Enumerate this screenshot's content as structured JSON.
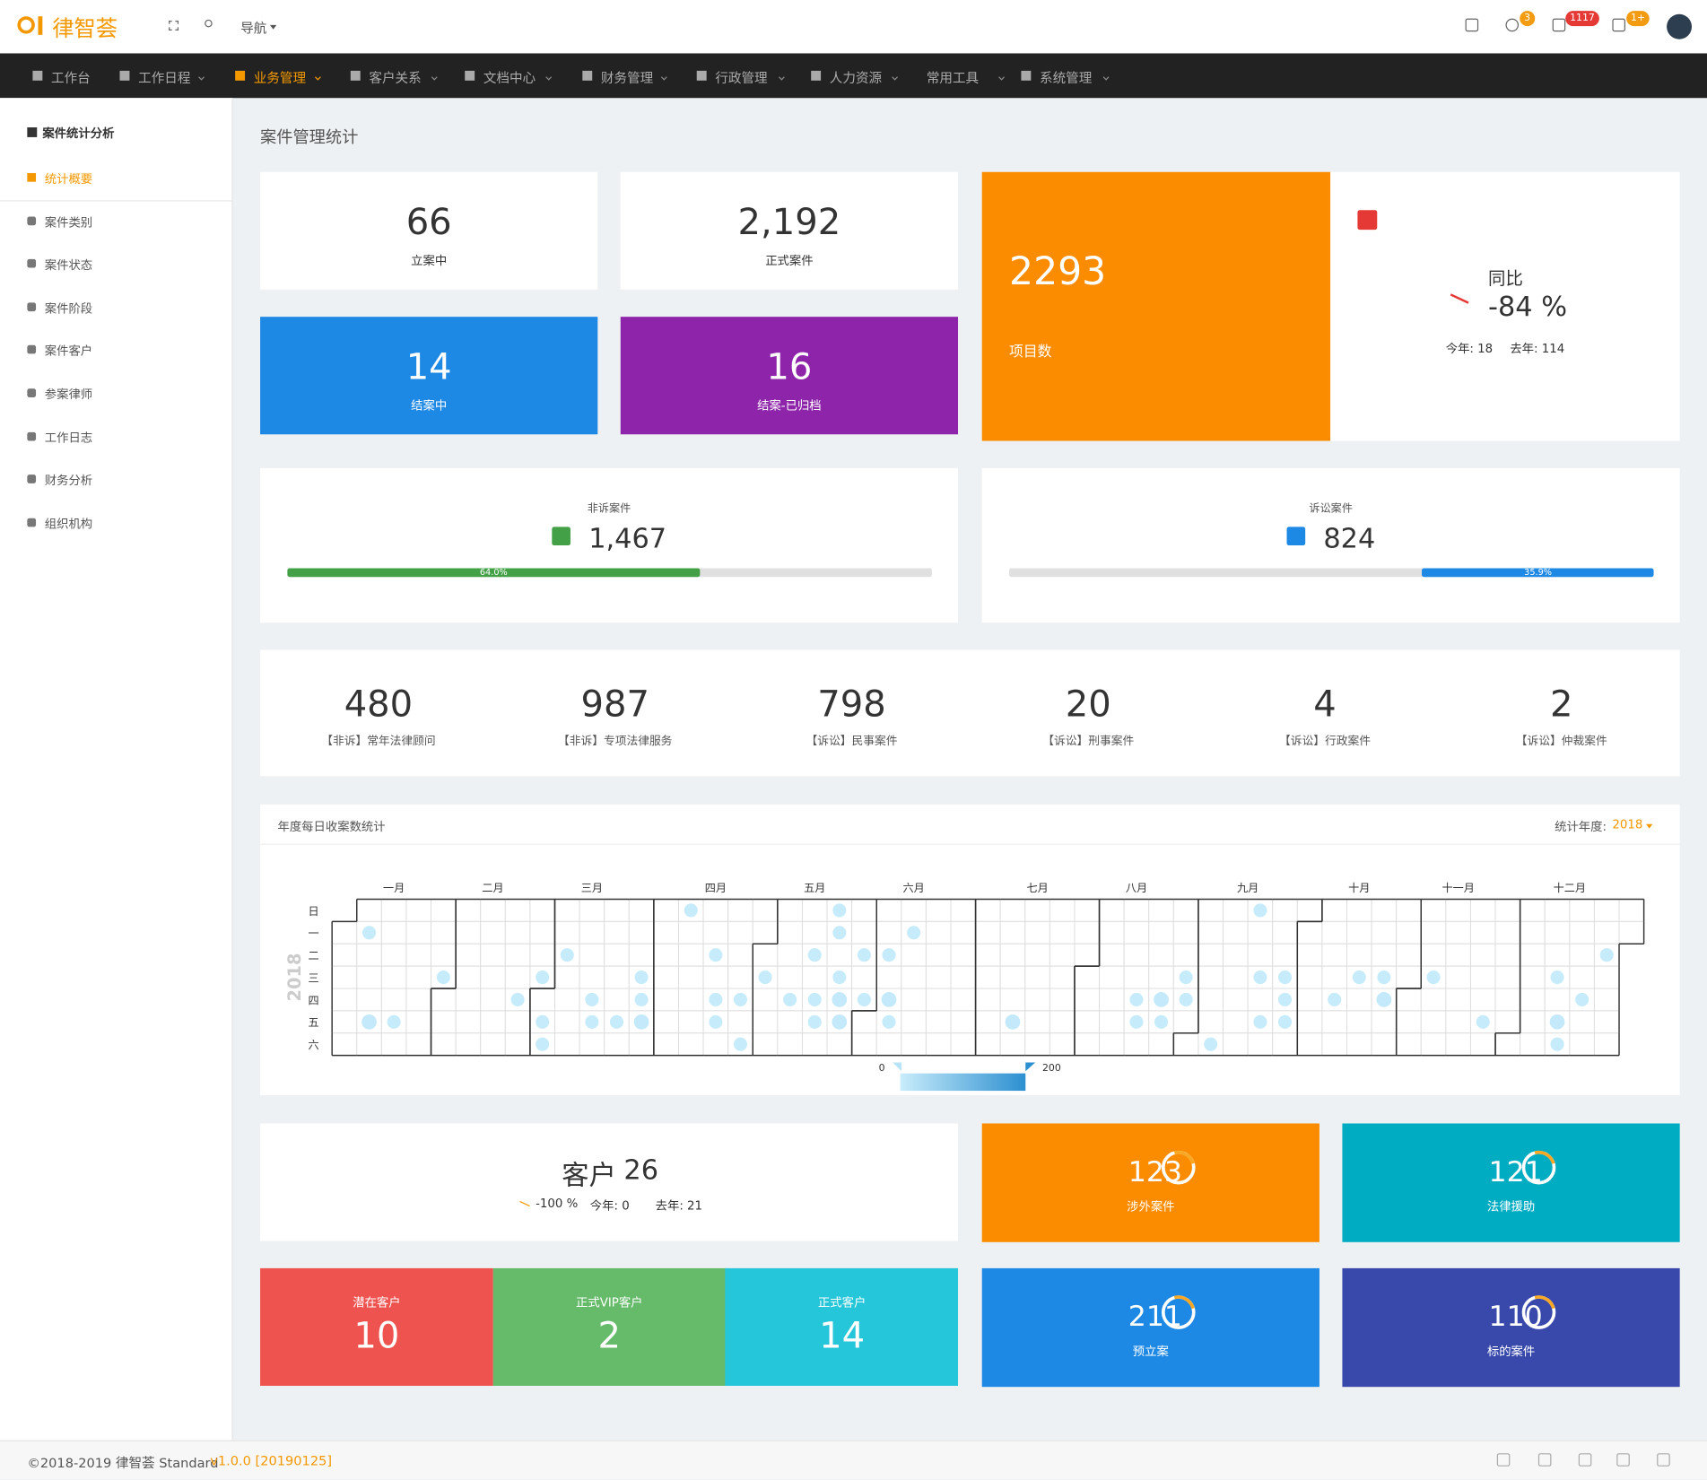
{
  "header": {
    "logo": "律智荟",
    "nav": "导航",
    "badges": [
      "3",
      "1117",
      "1+"
    ]
  },
  "menu": [
    "工作台",
    "工作日程",
    "业务管理",
    "客户关系",
    "文档中心",
    "财务管理",
    "行政管理",
    "人力资源",
    "常用工具",
    "系统管理"
  ],
  "sidebar": {
    "title": "案件统计分析",
    "items": [
      "统计概要",
      "案件类别",
      "案件状态",
      "案件阶段",
      "案件客户",
      "参案律师",
      "工作日志",
      "财务分析",
      "组织机构"
    ]
  },
  "page_title": "案件管理统计",
  "cases": [
    {
      "value": "66",
      "label": "立案中"
    },
    {
      "value": "2,192",
      "label": "正式案件"
    },
    {
      "value": "14",
      "label": "结案中"
    },
    {
      "value": "16",
      "label": "结案-已归档"
    }
  ],
  "projects": {
    "value": "2293",
    "label": "项目数"
  },
  "yoy": {
    "title": "同比",
    "value": "-84 %",
    "this_year": "今年: 18",
    "last_year": "去年: 114"
  },
  "non_litigation": {
    "title": "非诉案件",
    "value": "1,467",
    "percent": 64.0,
    "percent_label": "64.0%"
  },
  "litigation": {
    "title": "诉讼案件",
    "value": "824",
    "percent": 35.9,
    "percent_label": "35.9%"
  },
  "case_types": [
    {
      "value": "480",
      "label": "【非诉】常年法律顾问"
    },
    {
      "value": "987",
      "label": "【非诉】专项法律服务"
    },
    {
      "value": "798",
      "label": "【诉讼】民事案件"
    },
    {
      "value": "20",
      "label": "【诉讼】刑事案件"
    },
    {
      "value": "4",
      "label": "【诉讼】行政案件"
    },
    {
      "value": "2",
      "label": "【诉讼】仲裁案件"
    }
  ],
  "calendar": {
    "title": "年度每日收案数统计",
    "year_label": "统计年度:",
    "year": 2018,
    "months": [
      "一月",
      "二月",
      "三月",
      "四月",
      "五月",
      "六月",
      "七月",
      "八月",
      "九月",
      "十月",
      "十一月",
      "十二月"
    ],
    "weekdays": [
      "日",
      "一",
      "二",
      "三",
      "四",
      "五",
      "六"
    ],
    "range": [
      0,
      200
    ],
    "days": [
      [
        "2018-01-08",
        10
      ],
      [
        "2018-01-12",
        20
      ],
      [
        "2018-01-19",
        10
      ],
      [
        "2018-01-31",
        10
      ],
      [
        "2018-02-22",
        10
      ],
      [
        "2018-02-28",
        10
      ],
      [
        "2018-03-02",
        10
      ],
      [
        "2018-03-03",
        10
      ],
      [
        "2018-03-06",
        10
      ],
      [
        "2018-03-15",
        10
      ],
      [
        "2018-03-16",
        10
      ],
      [
        "2018-03-23",
        10
      ],
      [
        "2018-03-28",
        10
      ],
      [
        "2018-03-29",
        10
      ],
      [
        "2018-03-30",
        20
      ],
      [
        "2018-04-08",
        10
      ],
      [
        "2018-04-17",
        10
      ],
      [
        "2018-04-19",
        10
      ],
      [
        "2018-04-20",
        10
      ],
      [
        "2018-04-26",
        10
      ],
      [
        "2018-04-28",
        10
      ],
      [
        "2018-05-02",
        10
      ],
      [
        "2018-05-10",
        10
      ],
      [
        "2018-05-15",
        10
      ],
      [
        "2018-05-17",
        10
      ],
      [
        "2018-05-18",
        10
      ],
      [
        "2018-05-20",
        10
      ],
      [
        "2018-05-21",
        10
      ],
      [
        "2018-05-23",
        10
      ],
      [
        "2018-05-24",
        20
      ],
      [
        "2018-05-25",
        20
      ],
      [
        "2018-05-29",
        10
      ],
      [
        "2018-05-31",
        10
      ],
      [
        "2018-06-05",
        10
      ],
      [
        "2018-06-07",
        20
      ],
      [
        "2018-06-08",
        10
      ],
      [
        "2018-06-11",
        10
      ],
      [
        "2018-07-13",
        20
      ],
      [
        "2018-08-16",
        10
      ],
      [
        "2018-08-17",
        10
      ],
      [
        "2018-08-23",
        20
      ],
      [
        "2018-08-24",
        10
      ],
      [
        "2018-08-29",
        10
      ],
      [
        "2018-08-30",
        10
      ],
      [
        "2018-09-08",
        10
      ],
      [
        "2018-09-16",
        10
      ],
      [
        "2018-09-19",
        10
      ],
      [
        "2018-09-21",
        10
      ],
      [
        "2018-09-26",
        10
      ],
      [
        "2018-09-27",
        10
      ],
      [
        "2018-09-28",
        10
      ],
      [
        "2018-10-11",
        10
      ],
      [
        "2018-10-17",
        10
      ],
      [
        "2018-10-24",
        10
      ],
      [
        "2018-10-25",
        20
      ],
      [
        "2018-11-07",
        10
      ],
      [
        "2018-11-23",
        10
      ],
      [
        "2018-12-12",
        10
      ],
      [
        "2018-12-14",
        20
      ],
      [
        "2018-12-15",
        10
      ],
      [
        "2018-12-20",
        10
      ],
      [
        "2018-12-25",
        10
      ]
    ]
  },
  "customers": {
    "title": "客户",
    "total": "26",
    "change": "-100 %",
    "this_year": "今年: 0",
    "last_year": "去年: 21",
    "types": [
      {
        "label": "潜在客户",
        "value": "10"
      },
      {
        "label": "正式VIP客户",
        "value": "2"
      },
      {
        "label": "正式客户",
        "value": "14"
      }
    ]
  },
  "ring_cards": [
    {
      "value": "123",
      "label": "涉外案件"
    },
    {
      "value": "121",
      "label": "法律援助"
    },
    {
      "value": "211",
      "label": "预立案"
    },
    {
      "value": "110",
      "label": "标的案件"
    }
  ],
  "footer": {
    "copyright": "©2018-2019 律智荟  Standard",
    "version": "v1.0.0 [20190125]"
  }
}
